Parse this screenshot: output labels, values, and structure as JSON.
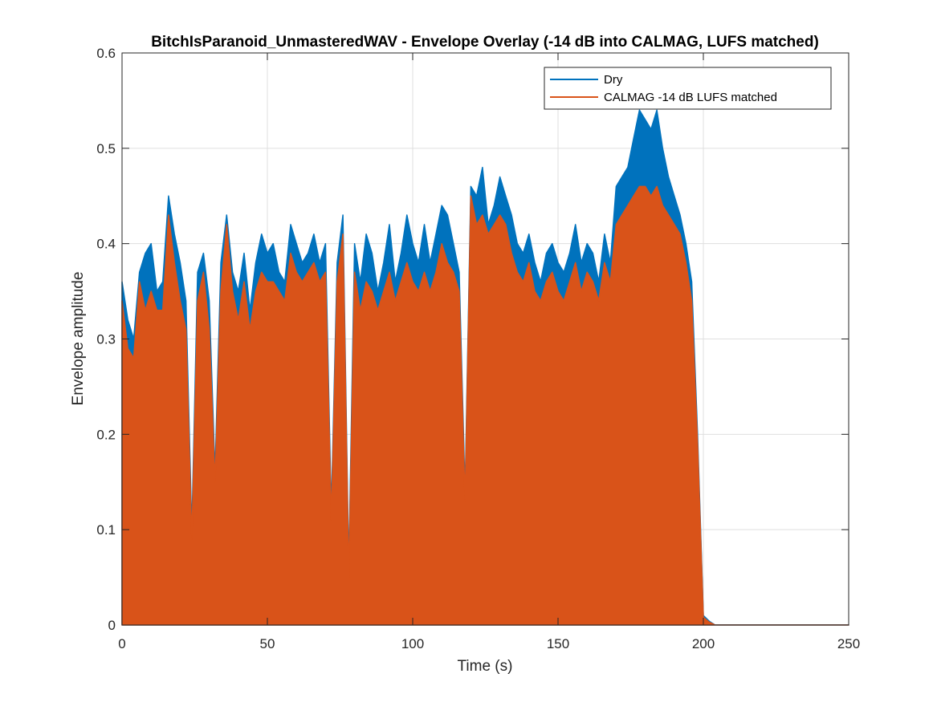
{
  "chart_data": {
    "type": "area",
    "title": "BitchIsParanoid_UnmasteredWAV - Envelope Overlay (-14 dB into CALMAG, LUFS matched)",
    "xlabel": "Time (s)",
    "ylabel": "Envelope amplitude",
    "xlim": [
      0,
      250
    ],
    "ylim": [
      0,
      0.6
    ],
    "xticks": [
      "0",
      "50",
      "100",
      "150",
      "200",
      "250"
    ],
    "yticks": [
      "0",
      "0.1",
      "0.2",
      "0.3",
      "0.4",
      "0.5",
      "0.6"
    ],
    "grid": true,
    "legend_position": "top-right",
    "x": [
      0,
      2,
      4,
      6,
      8,
      10,
      12,
      14,
      16,
      18,
      20,
      22,
      24,
      26,
      28,
      30,
      32,
      34,
      36,
      38,
      40,
      42,
      44,
      46,
      48,
      50,
      52,
      54,
      56,
      58,
      60,
      62,
      64,
      66,
      68,
      70,
      72,
      74,
      76,
      78,
      80,
      82,
      84,
      86,
      88,
      90,
      92,
      94,
      96,
      98,
      100,
      102,
      104,
      106,
      108,
      110,
      112,
      114,
      116,
      118,
      120,
      122,
      124,
      126,
      128,
      130,
      132,
      134,
      136,
      138,
      140,
      142,
      144,
      146,
      148,
      150,
      152,
      154,
      156,
      158,
      160,
      162,
      164,
      166,
      168,
      170,
      172,
      174,
      176,
      178,
      180,
      182,
      184,
      186,
      188,
      190,
      192,
      194,
      196,
      198,
      200,
      202,
      204,
      206,
      208,
      210,
      220,
      230,
      240,
      250
    ],
    "series": [
      {
        "name": "Dry",
        "color": "#0072BD",
        "values": [
          0.36,
          0.32,
          0.3,
          0.37,
          0.39,
          0.4,
          0.35,
          0.36,
          0.45,
          0.41,
          0.38,
          0.34,
          0.1,
          0.37,
          0.39,
          0.34,
          0.16,
          0.38,
          0.43,
          0.37,
          0.35,
          0.39,
          0.33,
          0.38,
          0.41,
          0.39,
          0.4,
          0.37,
          0.36,
          0.42,
          0.4,
          0.38,
          0.39,
          0.41,
          0.38,
          0.4,
          0.12,
          0.38,
          0.43,
          0.06,
          0.4,
          0.36,
          0.41,
          0.39,
          0.35,
          0.38,
          0.42,
          0.36,
          0.39,
          0.43,
          0.4,
          0.38,
          0.42,
          0.38,
          0.41,
          0.44,
          0.43,
          0.4,
          0.37,
          0.14,
          0.46,
          0.45,
          0.48,
          0.42,
          0.44,
          0.47,
          0.45,
          0.43,
          0.4,
          0.39,
          0.41,
          0.38,
          0.36,
          0.39,
          0.4,
          0.38,
          0.37,
          0.39,
          0.42,
          0.38,
          0.4,
          0.39,
          0.36,
          0.41,
          0.38,
          0.46,
          0.47,
          0.48,
          0.51,
          0.54,
          0.53,
          0.52,
          0.54,
          0.5,
          0.47,
          0.45,
          0.43,
          0.4,
          0.36,
          0.2,
          0.01,
          0.004,
          0.0,
          0.0,
          0.0,
          0.0,
          0.0,
          0.0,
          0.0,
          0.0
        ]
      },
      {
        "name": "CALMAG -14 dB LUFS matched",
        "color": "#D95319",
        "values": [
          0.34,
          0.29,
          0.28,
          0.36,
          0.33,
          0.35,
          0.33,
          0.33,
          0.43,
          0.38,
          0.34,
          0.31,
          0.09,
          0.34,
          0.37,
          0.31,
          0.15,
          0.35,
          0.42,
          0.35,
          0.32,
          0.36,
          0.31,
          0.35,
          0.37,
          0.36,
          0.36,
          0.35,
          0.34,
          0.39,
          0.37,
          0.36,
          0.37,
          0.38,
          0.36,
          0.37,
          0.11,
          0.36,
          0.41,
          0.05,
          0.37,
          0.33,
          0.36,
          0.35,
          0.33,
          0.35,
          0.37,
          0.34,
          0.36,
          0.38,
          0.36,
          0.35,
          0.37,
          0.35,
          0.37,
          0.4,
          0.38,
          0.37,
          0.35,
          0.13,
          0.45,
          0.42,
          0.43,
          0.41,
          0.42,
          0.43,
          0.42,
          0.39,
          0.37,
          0.36,
          0.38,
          0.35,
          0.34,
          0.36,
          0.37,
          0.35,
          0.34,
          0.36,
          0.38,
          0.35,
          0.37,
          0.36,
          0.34,
          0.38,
          0.36,
          0.42,
          0.43,
          0.44,
          0.45,
          0.46,
          0.46,
          0.45,
          0.46,
          0.44,
          0.43,
          0.42,
          0.41,
          0.38,
          0.34,
          0.19,
          0.008,
          0.003,
          0.0,
          0.0,
          0.0,
          0.0,
          0.0,
          0.0,
          0.0,
          0.0
        ]
      }
    ]
  }
}
